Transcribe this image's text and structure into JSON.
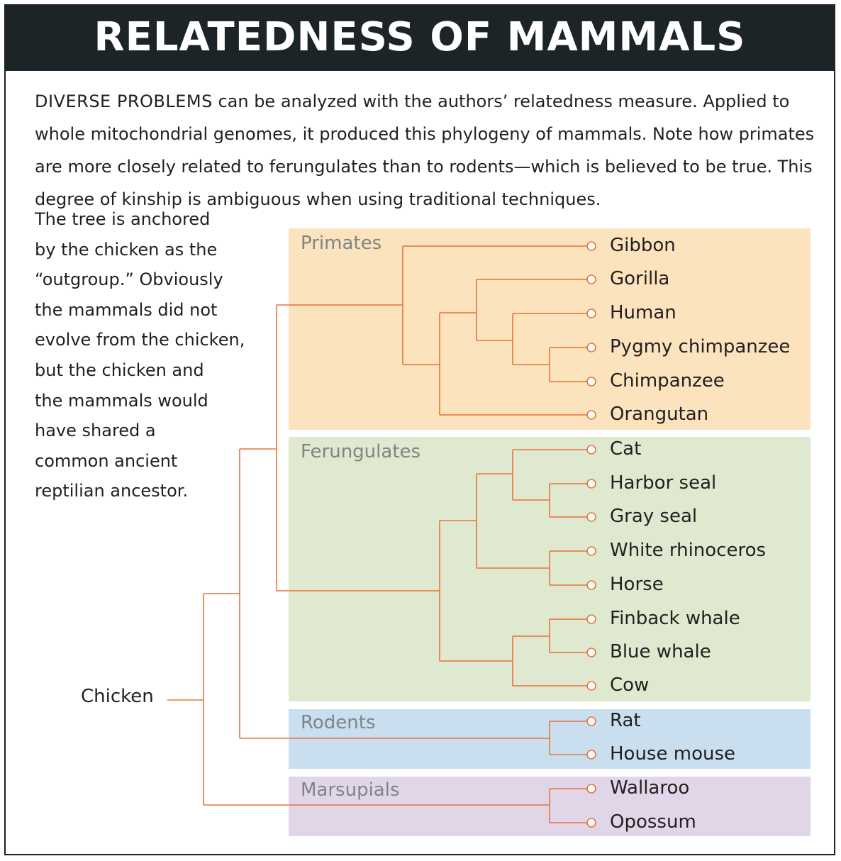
{
  "title": "RELATEDNESS OF MAMMALS",
  "intro": {
    "lead": "DIVERSE PROBLEMS",
    "text": " can be analyzed with the authors’ relatedness measure. Applied to whole mitochondrial genomes, it produced this phylogeny of mammals. Note how primates are more closely related to ferungulates than to rodents—which is believed to be true. This degree of kinship is ambiguous when using traditional techniques."
  },
  "side_note": [
    "The tree is anchored",
    "by the chicken as the",
    "“outgroup.” Obviously",
    "the mammals did not",
    "evolve from the chicken,",
    "but the chicken and",
    "the mammals would",
    "have shared a",
    "common ancient",
    "reptilian ancestor."
  ],
  "outgroup": "Chicken",
  "groups": [
    {
      "name": "Primates",
      "color": "#fbe3bd",
      "members": [
        "Gibbon",
        "Gorilla",
        "Human",
        "Pygmy chimpanzee",
        "Chimpanzee",
        "Orangutan"
      ]
    },
    {
      "name": "Ferungulates",
      "color": "#dfe9cf",
      "members": [
        "Cat",
        "Harbor seal",
        "Gray seal",
        "White rhinoceros",
        "Horse",
        "Finback whale",
        "Blue whale",
        "Cow"
      ]
    },
    {
      "name": "Rodents",
      "color": "#c9dff0",
      "members": [
        "Rat",
        "House mouse"
      ]
    },
    {
      "name": "Marsupials",
      "color": "#e1d6e8",
      "members": [
        "Wallaroo",
        "Opossum"
      ]
    }
  ],
  "colors": {
    "tree_line": "#e8733a",
    "title_bg": "#1c2428",
    "group_label": "#7f8486"
  }
}
